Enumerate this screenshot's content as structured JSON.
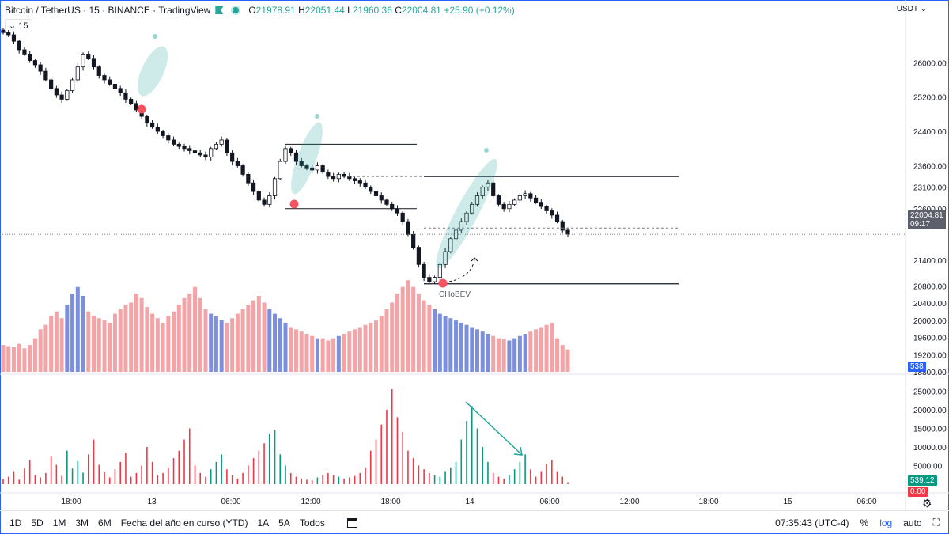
{
  "legend": {
    "symbol": "Bitcoin / TetherUS · 15 · BINANCE · TradingView",
    "open_label": "O",
    "open": "21978.91",
    "high_label": "H",
    "high": "22051.44",
    "low_label": "L",
    "low": "21960.36",
    "close_label": "C",
    "close": "22004.81",
    "change": "+25.90 (+0.12%)"
  },
  "volume_pill": "15",
  "currency": "USDT",
  "price_axis": {
    "ticks": [
      "26000.00",
      "25200.00",
      "24400.00",
      "23600.00",
      "23100.00",
      "22600.00",
      "21400.00",
      "20800.00",
      "20400.00",
      "20000.00",
      "19600.00",
      "19200.00",
      "18800.00"
    ],
    "current_price": "22004.81",
    "countdown": "09:17",
    "volume_badge": "538"
  },
  "osc_axis": {
    "ticks": [
      "25000.00",
      "20000.00",
      "15000.00",
      "10000.00",
      "5000.00"
    ],
    "badge_green": "539.12",
    "badge_red": "0.00"
  },
  "time_axis": [
    "18:00",
    "13",
    "06:00",
    "12:00",
    "18:00",
    "14",
    "06:00",
    "12:00",
    "18:00",
    "15",
    "06:00"
  ],
  "annotation": "CHoBEV",
  "bottom": {
    "timeframes": [
      "1D",
      "5D",
      "1M",
      "3M",
      "6M",
      "Fecha del año en curso (YTD)",
      "1A",
      "5A",
      "Todos"
    ],
    "clock": "07:35:43 (UTC-4)",
    "percent": "%",
    "log": "log",
    "auto": "auto"
  },
  "colors": {
    "up": "#26a69a",
    "down": "#ef5350",
    "accent": "#2962ff",
    "vol_up": "#7b8fdc",
    "vol_down": "#f4a3a6"
  },
  "chart_data": {
    "type": "candlestick",
    "title": "Bitcoin / TetherUS · 15 · BINANCE",
    "ylim": [
      18800,
      27000
    ],
    "close_series": [
      26700,
      26650,
      26500,
      26300,
      26200,
      26050,
      25950,
      25800,
      25600,
      25400,
      25250,
      25150,
      25350,
      25600,
      25900,
      26200,
      26100,
      25900,
      25700,
      25600,
      25500,
      25400,
      25300,
      25150,
      25050,
      24900,
      24750,
      24600,
      24500,
      24400,
      24300,
      24200,
      24100,
      24050,
      24000,
      23950,
      23900,
      23850,
      23800,
      24000,
      24100,
      24200,
      23900,
      23700,
      23600,
      23400,
      23200,
      23000,
      22800,
      22700,
      22900,
      23300,
      23700,
      24000,
      23900,
      23700,
      23600,
      23550,
      23500,
      23600,
      23450,
      23350,
      23300,
      23400,
      23350,
      23300,
      23250,
      23200,
      23100,
      23000,
      22900,
      22800,
      22700,
      22600,
      22500,
      22300,
      22000,
      21700,
      21300,
      21000,
      20900,
      21000,
      21300,
      21600,
      21900,
      22100,
      22300,
      22500,
      22700,
      22900,
      23100,
      23200,
      22900,
      22700,
      22600,
      22700,
      22800,
      22900,
      22950,
      22850,
      22750,
      22650,
      22550,
      22450,
      22300,
      22100,
      22004.81
    ],
    "volume_series": [
      240,
      230,
      220,
      250,
      210,
      240,
      300,
      380,
      420,
      500,
      540,
      480,
      600,
      700,
      760,
      680,
      540,
      500,
      480,
      460,
      440,
      520,
      560,
      600,
      620,
      700,
      660,
      580,
      520,
      480,
      440,
      500,
      540,
      600,
      660,
      700,
      760,
      660,
      560,
      520,
      500,
      460,
      440,
      480,
      520,
      560,
      600,
      640,
      680,
      620,
      560,
      520,
      480,
      440,
      400,
      380,
      360,
      340,
      320,
      300,
      300,
      280,
      300,
      320,
      340,
      360,
      380,
      400,
      420,
      440,
      460,
      500,
      560,
      620,
      700,
      760,
      820,
      760,
      700,
      640,
      600,
      560,
      520,
      500,
      480,
      460,
      440,
      420,
      400,
      380,
      360,
      340,
      320,
      300,
      290,
      280,
      300,
      320,
      340,
      360,
      380,
      400,
      420,
      440,
      300,
      240,
      200
    ],
    "osc_series": [
      1500,
      2000,
      3500,
      1200,
      4200,
      6500,
      2500,
      1800,
      3000,
      7500,
      5200,
      2200,
      9000,
      4200,
      6200,
      3100,
      8000,
      12000,
      5200,
      3200,
      1800,
      4000,
      6000,
      8500,
      2000,
      3000,
      5000,
      10000,
      6000,
      2500,
      3000,
      4500,
      7000,
      9000,
      12000,
      15000,
      5000,
      3000,
      2000,
      4000,
      6000,
      8000,
      4000,
      2500,
      1500,
      3000,
      5000,
      7000,
      9000,
      11000,
      13500,
      14500,
      8000,
      5000,
      3000,
      2000,
      1500,
      1200,
      1000,
      1800,
      2500,
      3000,
      2500,
      2000,
      1500,
      1800,
      2200,
      3000,
      4500,
      9000,
      12000,
      16000,
      20000,
      25500,
      18000,
      14000,
      9000,
      7000,
      5000,
      4000,
      3000,
      2500,
      2000,
      3500,
      4500,
      6000,
      12000,
      17000,
      21000,
      15000,
      10000,
      6000,
      3000,
      2000,
      1500,
      2500,
      4000,
      6000,
      8000,
      4000,
      2000,
      3500,
      5500,
      6500,
      3500,
      2000,
      539.12
    ]
  }
}
